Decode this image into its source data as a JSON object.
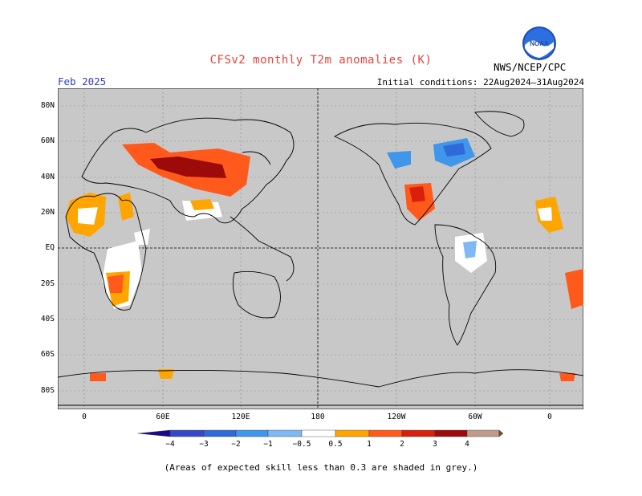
{
  "title": "CFSv2 monthly T2m anomalies (K)",
  "month": "Feb 2025",
  "initial_conditions": "Initial conditions: 22Aug2024–31Aug2024",
  "agency": "NWS/NCEP/CPC",
  "logo": {
    "text": "NOAA",
    "icon": "noaa-logo-icon"
  },
  "x_ticks": [
    "0",
    "60E",
    "120E",
    "180",
    "120W",
    "60W",
    "0"
  ],
  "y_ticks": [
    "80N",
    "60N",
    "40N",
    "20N",
    "EQ",
    "20S",
    "40S",
    "60S",
    "80S"
  ],
  "colorbar": {
    "labels": [
      "−4",
      "−3",
      "−2",
      "−1",
      "−0.5",
      "0.5",
      "1",
      "2",
      "3",
      "4"
    ],
    "colors": [
      "#1c0a8c",
      "#3548c7",
      "#2f6bd8",
      "#3f96ea",
      "#7fb8f5",
      "#ffffff",
      "#ffa500",
      "#ff5a1c",
      "#d8200a",
      "#9c0a0a",
      "#c09a8a",
      "#7a4a3c"
    ]
  },
  "footnote": "(Areas of expected skill less than 0.3 are shaded in grey.)",
  "colors": {
    "grey_mask": "#c8c8c8",
    "title": "#e8423a",
    "month": "#2e3fb8"
  }
}
